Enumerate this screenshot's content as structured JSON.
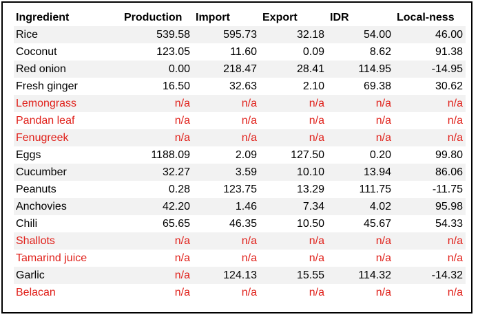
{
  "table": {
    "headers": [
      "Ingredient",
      "Production",
      "Import",
      "Export",
      "IDR",
      "Local-ness"
    ],
    "rows": [
      {
        "name": "Rice",
        "values": [
          "539.58",
          "595.73",
          "32.18",
          "54.00",
          "46.00"
        ],
        "missing": false
      },
      {
        "name": "Coconut",
        "values": [
          "123.05",
          "11.60",
          "0.09",
          "8.62",
          "91.38"
        ],
        "missing": false
      },
      {
        "name": "Red onion",
        "values": [
          "0.00",
          "218.47",
          "28.41",
          "114.95",
          "-14.95"
        ],
        "missing": false
      },
      {
        "name": "Fresh ginger",
        "values": [
          "16.50",
          "32.63",
          "2.10",
          "69.38",
          "30.62"
        ],
        "missing": false
      },
      {
        "name": "Lemongrass",
        "values": [
          "n/a",
          "n/a",
          "n/a",
          "n/a",
          "n/a"
        ],
        "missing": true
      },
      {
        "name": "Pandan leaf",
        "values": [
          "n/a",
          "n/a",
          "n/a",
          "n/a",
          "n/a"
        ],
        "missing": true
      },
      {
        "name": "Fenugreek",
        "values": [
          "n/a",
          "n/a",
          "n/a",
          "n/a",
          "n/a"
        ],
        "missing": true
      },
      {
        "name": "Eggs",
        "values": [
          "1188.09",
          "2.09",
          "127.50",
          "0.20",
          "99.80"
        ],
        "missing": false
      },
      {
        "name": "Cucumber",
        "values": [
          "32.27",
          "3.59",
          "10.10",
          "13.94",
          "86.06"
        ],
        "missing": false
      },
      {
        "name": "Peanuts",
        "values": [
          "0.28",
          "123.75",
          "13.29",
          "111.75",
          "-11.75"
        ],
        "missing": false
      },
      {
        "name": "Anchovies",
        "values": [
          "42.20",
          "1.46",
          "7.34",
          "4.02",
          "95.98"
        ],
        "missing": false
      },
      {
        "name": "Chili",
        "values": [
          "65.65",
          "46.35",
          "10.50",
          "45.67",
          "54.33"
        ],
        "missing": false
      },
      {
        "name": "Shallots",
        "values": [
          "n/a",
          "n/a",
          "n/a",
          "n/a",
          "n/a"
        ],
        "missing": true
      },
      {
        "name": "Tamarind juice",
        "values": [
          "n/a",
          "n/a",
          "n/a",
          "n/a",
          "n/a"
        ],
        "missing": true
      },
      {
        "name": "Garlic",
        "values": [
          "n/a",
          "124.13",
          "15.55",
          "114.32",
          "-14.32"
        ],
        "missing": false,
        "missing_cells": [
          0
        ]
      },
      {
        "name": "Belacan",
        "values": [
          "n/a",
          "n/a",
          "n/a",
          "n/a",
          "n/a"
        ],
        "missing": true
      }
    ]
  },
  "colors": {
    "missing_text": "#e0201a",
    "row_shade": "#f2f2f2",
    "border": "#000000"
  }
}
